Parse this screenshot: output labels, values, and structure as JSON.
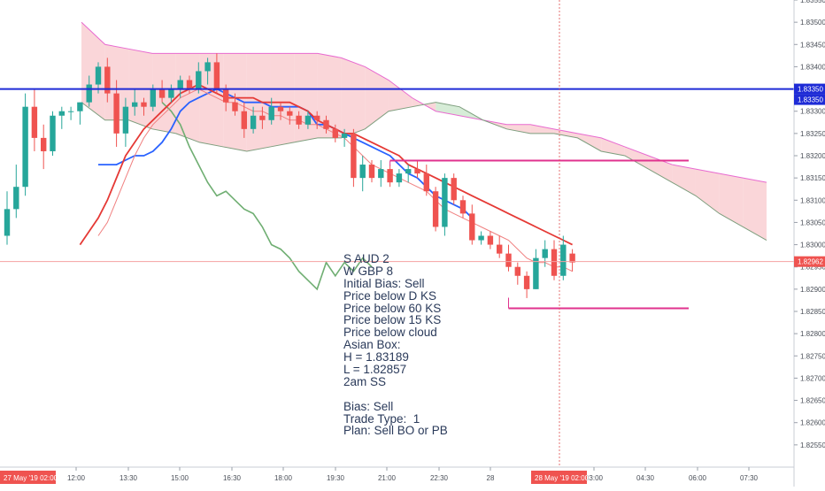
{
  "colors": {
    "bull": "#26a69a",
    "bear": "#ef5350",
    "kijun": "#2962ff",
    "tenkan": "#e53935",
    "fast_ma": "#f08080",
    "chikou": "#6fae72",
    "cloud_bear": "#f8c8cc",
    "cloud_bull": "#c8e6c9",
    "span_a": "#e86ad0",
    "span_b": "#7e9e7e",
    "level_line": "#1e2bd6",
    "box_line": "#e0338e",
    "price_line": "#f4a0a0"
  },
  "chart_data": {
    "type": "candlestick",
    "ylim": [
      1.825,
      1.8355
    ],
    "y_ticks": [
      "1.83550",
      "1.83500",
      "1.83450",
      "1.83400",
      "1.83350",
      "1.83300",
      "1.83250",
      "1.83200",
      "1.83150",
      "1.83100",
      "1.83050",
      "1.83000",
      "1.82950",
      "1.82900",
      "1.82850",
      "1.82800",
      "1.82750",
      "1.82700",
      "1.82650",
      "1.82600",
      "1.82550"
    ],
    "x_ticks": [
      "12:00",
      "13:30",
      "15:00",
      "16:30",
      "18:00",
      "19:30",
      "21:00",
      "22:30",
      "28",
      "03:00",
      "04:30",
      "06:00",
      "07:30"
    ],
    "x_start_label": "27 May '19  02:00",
    "x_cursor_label": "28 May '19  02:00",
    "price_labels": {
      "level": "1.83350",
      "level2": "1.83350",
      "last": "1.82962"
    },
    "level_price": 1.8335,
    "last_price": 1.82962,
    "asian_box": {
      "high": 1.83189,
      "low": 1.82857
    },
    "candles": [
      {
        "o": 1.8302,
        "h": 1.8312,
        "l": 1.83,
        "c": 1.8308
      },
      {
        "o": 1.8308,
        "h": 1.8318,
        "l": 1.8306,
        "c": 1.8313
      },
      {
        "o": 1.8313,
        "h": 1.8334,
        "l": 1.8311,
        "c": 1.8331
      },
      {
        "o": 1.8331,
        "h": 1.8335,
        "l": 1.8321,
        "c": 1.8324
      },
      {
        "o": 1.8324,
        "h": 1.8327,
        "l": 1.8317,
        "c": 1.8321
      },
      {
        "o": 1.8321,
        "h": 1.833,
        "l": 1.832,
        "c": 1.8329
      },
      {
        "o": 1.8329,
        "h": 1.8331,
        "l": 1.8326,
        "c": 1.833
      },
      {
        "o": 1.833,
        "h": 1.8331,
        "l": 1.8328,
        "c": 1.833
      },
      {
        "o": 1.833,
        "h": 1.8332,
        "l": 1.8327,
        "c": 1.8332
      },
      {
        "o": 1.8332,
        "h": 1.8338,
        "l": 1.8331,
        "c": 1.8336
      },
      {
        "o": 1.8336,
        "h": 1.8341,
        "l": 1.8334,
        "c": 1.834
      },
      {
        "o": 1.834,
        "h": 1.8342,
        "l": 1.8332,
        "c": 1.8334
      },
      {
        "o": 1.8334,
        "h": 1.8337,
        "l": 1.8322,
        "c": 1.8325
      },
      {
        "o": 1.8325,
        "h": 1.8333,
        "l": 1.8322,
        "c": 1.8331
      },
      {
        "o": 1.8331,
        "h": 1.8335,
        "l": 1.8329,
        "c": 1.8332
      },
      {
        "o": 1.8332,
        "h": 1.8333,
        "l": 1.8329,
        "c": 1.8331
      },
      {
        "o": 1.8331,
        "h": 1.8336,
        "l": 1.833,
        "c": 1.8335
      },
      {
        "o": 1.8335,
        "h": 1.8337,
        "l": 1.8332,
        "c": 1.8333
      },
      {
        "o": 1.8333,
        "h": 1.8336,
        "l": 1.8332,
        "c": 1.8335
      },
      {
        "o": 1.8335,
        "h": 1.8338,
        "l": 1.8333,
        "c": 1.8337
      },
      {
        "o": 1.8337,
        "h": 1.8338,
        "l": 1.8334,
        "c": 1.8335
      },
      {
        "o": 1.8335,
        "h": 1.8341,
        "l": 1.8334,
        "c": 1.8339
      },
      {
        "o": 1.8339,
        "h": 1.8342,
        "l": 1.8336,
        "c": 1.8341
      },
      {
        "o": 1.8341,
        "h": 1.8343,
        "l": 1.8334,
        "c": 1.8335
      },
      {
        "o": 1.8335,
        "h": 1.8336,
        "l": 1.833,
        "c": 1.8332
      },
      {
        "o": 1.8332,
        "h": 1.8334,
        "l": 1.8329,
        "c": 1.833
      },
      {
        "o": 1.833,
        "h": 1.8332,
        "l": 1.8324,
        "c": 1.8326
      },
      {
        "o": 1.8326,
        "h": 1.8331,
        "l": 1.8325,
        "c": 1.8329
      },
      {
        "o": 1.8329,
        "h": 1.8331,
        "l": 1.8326,
        "c": 1.8328
      },
      {
        "o": 1.8328,
        "h": 1.8333,
        "l": 1.8327,
        "c": 1.8331
      },
      {
        "o": 1.8331,
        "h": 1.8332,
        "l": 1.8328,
        "c": 1.833
      },
      {
        "o": 1.833,
        "h": 1.8331,
        "l": 1.8327,
        "c": 1.8329
      },
      {
        "o": 1.8329,
        "h": 1.833,
        "l": 1.8326,
        "c": 1.8327
      },
      {
        "o": 1.8327,
        "h": 1.833,
        "l": 1.8326,
        "c": 1.8329
      },
      {
        "o": 1.8329,
        "h": 1.833,
        "l": 1.8326,
        "c": 1.8328
      },
      {
        "o": 1.8328,
        "h": 1.8329,
        "l": 1.8325,
        "c": 1.8326
      },
      {
        "o": 1.8326,
        "h": 1.8327,
        "l": 1.8323,
        "c": 1.8324
      },
      {
        "o": 1.8324,
        "h": 1.8326,
        "l": 1.8322,
        "c": 1.8325
      },
      {
        "o": 1.8325,
        "h": 1.8326,
        "l": 1.8313,
        "c": 1.8315
      },
      {
        "o": 1.8315,
        "h": 1.832,
        "l": 1.8312,
        "c": 1.8318
      },
      {
        "o": 1.8318,
        "h": 1.8319,
        "l": 1.8314,
        "c": 1.8315
      },
      {
        "o": 1.8315,
        "h": 1.8319,
        "l": 1.8313,
        "c": 1.8317
      },
      {
        "o": 1.8317,
        "h": 1.8318,
        "l": 1.8313,
        "c": 1.8314
      },
      {
        "o": 1.8314,
        "h": 1.8317,
        "l": 1.8313,
        "c": 1.8316
      },
      {
        "o": 1.8316,
        "h": 1.8318,
        "l": 1.8314,
        "c": 1.8317
      },
      {
        "o": 1.8317,
        "h": 1.8319,
        "l": 1.8315,
        "c": 1.8316
      },
      {
        "o": 1.8316,
        "h": 1.8318,
        "l": 1.8311,
        "c": 1.8312
      },
      {
        "o": 1.8312,
        "h": 1.8313,
        "l": 1.8303,
        "c": 1.8304
      },
      {
        "o": 1.8304,
        "h": 1.8316,
        "l": 1.8302,
        "c": 1.8315
      },
      {
        "o": 1.8315,
        "h": 1.8316,
        "l": 1.8309,
        "c": 1.831
      },
      {
        "o": 1.831,
        "h": 1.8311,
        "l": 1.8306,
        "c": 1.8307
      },
      {
        "o": 1.8307,
        "h": 1.8309,
        "l": 1.83,
        "c": 1.8301
      },
      {
        "o": 1.8301,
        "h": 1.8303,
        "l": 1.83,
        "c": 1.8302
      },
      {
        "o": 1.8302,
        "h": 1.8303,
        "l": 1.8299,
        "c": 1.83
      },
      {
        "o": 1.83,
        "h": 1.8302,
        "l": 1.8297,
        "c": 1.8298
      },
      {
        "o": 1.8298,
        "h": 1.83,
        "l": 1.8294,
        "c": 1.8295
      },
      {
        "o": 1.8295,
        "h": 1.8296,
        "l": 1.8291,
        "c": 1.8293
      },
      {
        "o": 1.8293,
        "h": 1.8294,
        "l": 1.8288,
        "c": 1.829
      },
      {
        "o": 1.829,
        "h": 1.8299,
        "l": 1.829,
        "c": 1.8297
      },
      {
        "o": 1.8297,
        "h": 1.8301,
        "l": 1.8295,
        "c": 1.8299
      },
      {
        "o": 1.8299,
        "h": 1.8301,
        "l": 1.8292,
        "c": 1.8293
      },
      {
        "o": 1.8293,
        "h": 1.8302,
        "l": 1.8292,
        "c": 1.83
      },
      {
        "o": 1.8298,
        "h": 1.8299,
        "l": 1.8294,
        "c": 1.8296
      }
    ],
    "tenkan": [
      1.83,
      1.8303,
      1.8306,
      1.831,
      1.8315,
      1.832,
      1.8323,
      1.8326,
      1.8328,
      1.833,
      1.8332,
      1.8334,
      1.8335,
      1.8336,
      1.8335,
      1.8334,
      1.8333,
      1.8333,
      1.8333,
      1.8333,
      1.8332,
      1.8332,
      1.8332,
      1.8332,
      1.8331,
      1.833,
      1.8328,
      1.8327,
      1.8326,
      1.8325,
      1.8325,
      1.8324,
      1.8323,
      1.8322,
      1.8321,
      1.832,
      1.8318,
      1.8317,
      1.8316,
      1.8315,
      1.8314,
      1.8313,
      1.8312,
      1.8311,
      1.831,
      1.8309,
      1.8308,
      1.8307,
      1.8306,
      1.8305,
      1.8304,
      1.8303,
      1.8302,
      1.8301,
      1.83
    ],
    "tenkan_start": 8,
    "fast_ma": [
      1.8302,
      1.8305,
      1.831,
      1.8315,
      1.832,
      1.8324,
      1.8327,
      1.8329,
      1.8331,
      1.8333,
      1.8334,
      1.8335,
      1.8334,
      1.8333,
      1.8332,
      1.8332,
      1.8331,
      1.833,
      1.833,
      1.8329,
      1.8329,
      1.8328,
      1.8328,
      1.8327,
      1.8327,
      1.8326,
      1.8325,
      1.8324,
      1.8322,
      1.832,
      1.8318,
      1.8317,
      1.8316,
      1.8315,
      1.8314,
      1.8313,
      1.8312,
      1.831,
      1.8308,
      1.8307,
      1.8306,
      1.8305,
      1.8304,
      1.8303,
      1.8302,
      1.8301,
      1.8299,
      1.8297,
      1.8296,
      1.8296,
      1.8295,
      1.8295,
      1.8294
    ],
    "fast_ma_start": 10,
    "kijun": [
      1.8318,
      1.8318,
      1.8318,
      1.8319,
      1.832,
      1.832,
      1.8321,
      1.8323,
      1.8326,
      1.833,
      1.8332,
      1.8333,
      1.8334,
      1.8335,
      1.8334,
      1.8333,
      1.8332,
      1.8332,
      1.8332,
      1.8331,
      1.8331,
      1.8331,
      1.8331,
      1.833,
      1.8327,
      1.8327,
      1.8326,
      1.8325,
      1.8324,
      1.8323,
      1.8322,
      1.8321,
      1.832,
      1.8318,
      1.8316,
      1.8315,
      1.8313,
      1.8311,
      1.831,
      1.8309,
      1.8308,
      1.8306
    ],
    "kijun_start": 10,
    "chikou": [
      1.8332,
      1.833,
      1.8327,
      1.8322,
      1.8318,
      1.8314,
      1.8311,
      1.8312,
      1.831,
      1.8308,
      1.8307,
      1.8304,
      1.83,
      1.8299,
      1.8297,
      1.8294,
      1.8292,
      1.829,
      1.8296,
      1.8293,
      1.8296,
      1.8294,
      1.8297,
      1.8295
    ],
    "chikou_start": 17,
    "span_a": [
      1.835,
      1.8345,
      1.8344,
      1.8343,
      1.8343,
      1.8343,
      1.8343,
      1.8343,
      1.8343,
      1.8343,
      1.8343,
      1.8342,
      1.834,
      1.8337,
      1.8333,
      1.833,
      1.8329,
      1.8328,
      1.8327,
      1.8327,
      1.8326,
      1.8325,
      1.8324,
      1.8322,
      1.832,
      1.8318,
      1.8317,
      1.8316,
      1.8315,
      1.8314
    ],
    "span_b": [
      1.8332,
      1.8328,
      1.8328,
      1.8326,
      1.8325,
      1.8323,
      1.8322,
      1.8321,
      1.8322,
      1.8323,
      1.8324,
      1.8324,
      1.8326,
      1.833,
      1.8331,
      1.8332,
      1.8331,
      1.8328,
      1.8326,
      1.8325,
      1.8325,
      1.8324,
      1.8321,
      1.832,
      1.8317,
      1.8314,
      1.8311,
      1.8307,
      1.8304,
      1.8301
    ]
  },
  "note": {
    "lines": [
      "S AUD 2",
      "W GBP 8",
      "Initial Bias: Sell",
      "Price below D KS",
      "Price below 60 KS",
      "Price below 15 KS",
      "Price below cloud",
      "Asian Box:",
      "H = 1.83189",
      "L = 1.82857",
      "2am SS",
      "",
      "Bias: Sell",
      "Trade Type:  1",
      "Plan: Sell BO or PB"
    ]
  }
}
